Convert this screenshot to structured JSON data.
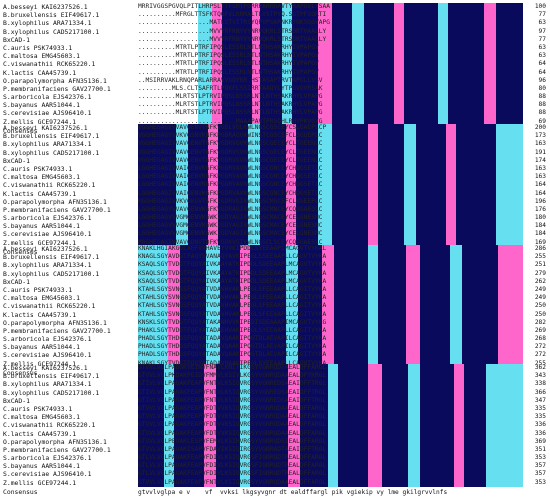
{
  "species": [
    "A.besseyi KAI6237526.1",
    "B.bruxellensis EIF49617.1",
    "B.xylophilus ARA71334.1",
    "B.xylophilus CAD5217100.1",
    "BxCAD-1",
    "C.auris PSK74933.1",
    "C.maltosa EMG45603.1",
    "C.viswanathii RCK65220.1",
    "K.lactis CAA45739.1",
    "O.parapolymorpha AFN35136.1",
    "P.membranifaciens GAV27700.1",
    "S.arboricola EJS42376.1",
    "S.bayanus AAR51044.1",
    "S.cerevisiae AJS96410.1",
    "Z.mellis GCE97244.1"
  ],
  "consensus_label": "Consensus",
  "blocks": [
    {
      "end_positions": [
        100,
        77,
        63,
        97,
        77,
        63,
        63,
        64,
        64,
        96,
        80,
        88,
        88,
        88,
        69
      ],
      "sequences": [
        "MRRIVGGSPGVQLPITLHRPSLTTFSMTPGRRPARRRAVTYRAPGVLYSAA",
        "..........MFRGLTTSFKTQGFVLRRMALTLVSTPYQ.SGTPFSQRTI",
        "...................MATLSTVITRSYQPVPSKRNKRYNKSGGVAPG",
        "...................MVVYRFRNYVYNRVQKRLSTRSDRTVAALLY",
        "...................MVVYRFRNYVYNRVQKRLSTRSDRTVAALLY",
        "..........MTRTLPTRFIPQSLESSRLNTLNTHSAKRHYIVPAPGV",
        "..........MTRTLPTRFIPQSLESSRLNTLNTHSAKRHYIVPAPGV",
        "..........MTRTLPTRFIPQSLESSRLNTLNTHSAKRHYIVPAPGV",
        "..........MTRTLPTRFIPQSLESSRLNTLNTHSAKRHYIVPAPGV",
        "..MSIRRVAKLRNQPARLARRAVVGQYKR.HSTASAPTRVTAPGLLYSV",
        ".........MLS.CLTSAFRTLPQKFLSSIRRTAAQYLYTPGVGVRSAK",
        "..........MLRTSTLPTRVIPQSLNSSRLNTLNTHSAKRHYLVPAPG",
        "..........MLRTSTLPTRVIPQSLNSSRLNTLNTHSAKRHYLVPAPG",
        "..........MLRTSTLPTRVIPQSLNSSRLNTLNTHSAKRHYLVPAPG",
        "..........................MAAAPAVTPRSQHLRHYPKVGYG"
      ],
      "consensus": "                    ipktgka lf  ngg l ykdipvp pkgneilinvkysgvcht"
    },
    {
      "end_positions": [
        200,
        173,
        163,
        191,
        174,
        163,
        163,
        164,
        164,
        196,
        176,
        180,
        184,
        184,
        169
      ],
      "sequences": [
        "VGGHEGAGVVVAVGENVTNFKVGDLVGLKWLNGSCGSCEYCSLGAEPLCP",
        "VGGHEGAGYVVKVGSNVKNFKPGDRAGVKWINSTCGSCEFCLSGQEPLC",
        "VGGHEGAGIVVAVGENVTGFKVGDRVGVKWLNGSCGECEYCLTGEENLC",
        "VGGHEGAGIVVAVGENVTGFKVGDRVGVKWLNGSCGECEYCLTGEENLC",
        "VGGHEGAGIVVAVGENVTGFKVGDRVGVKWLNGSCGECEYCLTGEENLC",
        "LGGHEGAGIVVAIGENVKGFKPGDRVAVKWLNGSCGNCEYCHQGSETLC",
        "LGGHEGAGIVVAIGENVKGFKPGDRVAVKWLNGSCGNCEYCHQGSETLC",
        "LGGHEGAGIVVAIGENVKGFKPGDRVAVKWLNGSCGNCEYCHQGSETLC",
        "LGGHEGAGIVVAIGENVKGFKPGDRVAVKWLNGSCGNCEYCHQGSETLC",
        "MGGHEGAGIVVKVGKGVTSFKIGDRVGIKWLNGSCMSCEFCLKGEEPLC",
        "LGGHEGAGYVVAVGENVKGFKVGDRAGIKWLNGSCMNCEYCQSGAEQLC",
        "LGGHEGAGVVVGMGENVKGWKIGDYAGIKWLNGSCMACEYCELGNESNC",
        "LGGHEGAGVVVGMGENVKGWKIGDYAGIKWLNGSCMACEYCELGNESNC",
        "LGGHEGAGVVVGMGENVKGWKIGDYAGIKWLNGSCMACEYCELGNESNC",
        "MGGHEGAGIVVAVGDNVTDFKVGDKVGIKWLNGSCLSCEYCQSGAESLC"
      ],
      "consensus": "vgghegagvvva g nvknfkvgdlagikwlngscmsceycaqgaesLcp  qtl"
    },
    {
      "end_positions": [
        286,
        255,
        251,
        279,
        262,
        249,
        249,
        250,
        250,
        282,
        269,
        268,
        272,
        272,
        255
      ],
      "sequences": [
        "KNAKLHGIAKGGLAEFVVHAVEYVVKIPDDLSYEEAAPIMCAGVTVYKAL",
        "KNAGLSGYAVDGTFAQYVVANAQYAVKIPEGLSSEEAAPLLCAGVTVYKA",
        "KSAQLSGYTVDGTFQQYAIVKAAYATKIPDDLSDEEAAPLMCAGVTVYKA",
        "KSAQLSGYTVDGTFQQYAIVKAAYATKIPDDLSDEEAAPLMCAGVTVYKA",
        "KSAQLSGYTVDGTFQQYAIVKAAYATKIPDDLSDEEAAPLMCAGVTVYKA",
        "KTAHLSGYSVNGSFQQYATVDAVHVAKLPEGLSFEEAAPLLCAGITVYKA",
        "KTAHLSGYSVNGSFQQYATVDAVHVAKLPEGLSFEEAAPLLCAGITVYKA",
        "KTAHLSGYSVNGSFQQYATVDAVHVAKLPEGLSFEEAAPLLCAGITVYKA",
        "KTAHLSGYSVNGSFQQYATVDAVHVAKLPEGLSFEEAAPLLCAGITVYKA",
        "KNSKLSGYTVDGTFQQYATAKANHVVKIPEDISDEAAAPIMCAGVTVYKG",
        "PHAKLSGYTVDGTFQEYATADAEHVAKIPEGLSYEEAAPLLCAGITVYKA",
        "PHADLSGYTHDGSFQQYATADAVQAAKIPQGTDLAEVAPILCAGITVYKA",
        "PHADLSGYTHDGSFQQYATADAVQAAKIPQGTDLAEVAPILCAGITVYKA",
        "PHADLSGYTHDGSFQQYATADAVQAAKIPQGTDLAEVAPILCAGITVYKA",
        "KNAKLSGYTVDGTFQQYATADAVHAAKIPEGLSYEEAAPLLCAGVTVYKA"
      ],
      "consensus": "k a l gqgvvaisgkagglgslavgyakamgyrvigidgg  ke  lgae fidftk kd vs iq atnggphgvinvsvemaai qs yvrt"
    },
    {
      "end_positions": [
        362,
        343,
        338,
        366,
        347,
        335,
        335,
        336,
        336,
        369,
        351,
        353,
        357,
        357,
        353
      ],
      "sequences": [
        "GTVVLVGLPADGKVEINVFNAVLKNITIKGSYVGNRQDTAEALDFFARGL",
        "GTVVLVGLPKDAKPEIDVFMMVLKSIVLKGSYVGNRQDAAEALDFYKRGL",
        "GTIVLVGLPAGAKFEAPVFNTVLKSIQVRGSYVGNREDSAEAIDFFTRGL",
        "GTIVLVGLPAGAKFEAPVFNTVLKSIQVRGSYVGNREDSAEAIDFFTRGL",
        "GTIVLVGLPAGAKFEAPVFNTVLKSIQVRGSYVGNREDSAEAIDFFTRGL",
        "GTVVLVGLPAGAKFEAPVFDTVVKSIQVRGSYVGNRQDAAEALDFFARGL",
        "GTVVLVGLPAGAKFEAPVFDTVVKSIQVRGSYVGNRQDAAEALDFFARGL",
        "GTVVLVGLPAGAKFEAPVFDTVVKSIQVRGSYVGNRQDAAEALDFFARGL",
        "GTVVLVGLPAGAKFEAPVFDTVVKSIQVRGSYVGNRQDAAEALDFFARGL",
        "GTVVLVGLPEGAKLESPVFEMVLKSIHVRGSYVGNRQDSIEALDFFARGL",
        "GTVVLVGLPAGAKISAPVFDAVIKSIQIRGSYVGNRADTAEAIDFFTRGL",
        "GTLVLVGLPAGAKFEAPVFDIVLKSIQVRGSFIGNRQDTREALDFFARGL",
        "GTLVLVGLPAGAKFEAPVFDIVLKSIQVRGSFIGNRQDTREALDFFARGL",
        "GTLVLVGLPAGAKFEAPVFDIVLKSIQVRGSFIGNRQDTREALDFFARGL",
        "GTVVLVGLPAGAKFEAPVFNTVLKSIQVRGSYVGNRQDAAEALDFFARGL"
      ],
      "consensus": "gtvvlvglpa e v    vf  vvksi lkgsyvgnr dt ealdffargl pik vgiekip vy lme gkilgrvvlnfs"
    }
  ],
  "colors": {
    "identical": "#0a0a5c",
    "high": "#ff66cc",
    "medium": "#66e0f0"
  }
}
